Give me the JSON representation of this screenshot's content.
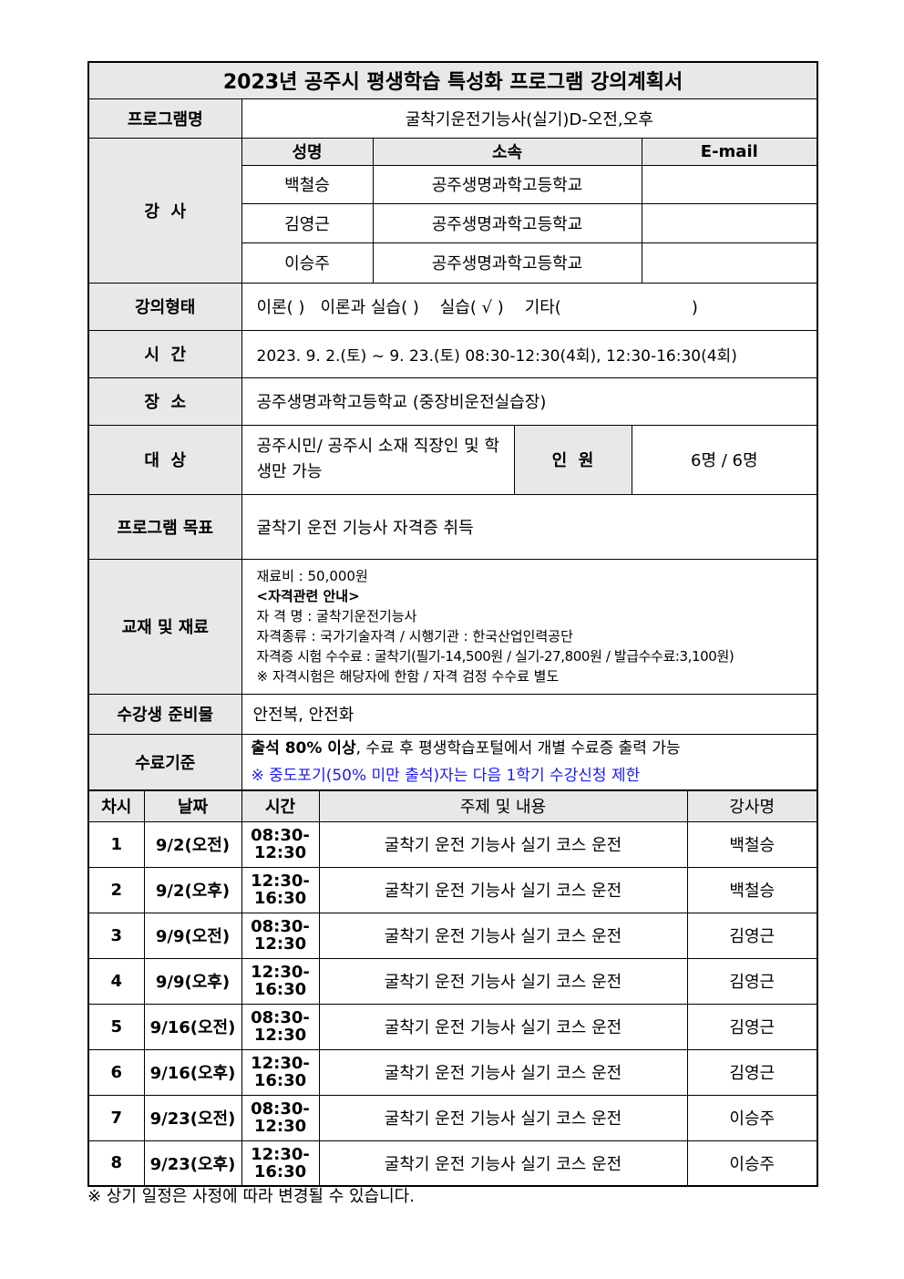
{
  "title": "2023년 공주시 평생학습 특성화 프로그램 강의계획서",
  "program": {
    "label": "프로그램명",
    "value": "굴착기운전기능사(실기)D-오전,오후"
  },
  "instructors": {
    "label": "강  사",
    "headers": [
      "성명",
      "소속",
      "E-mail"
    ],
    "rows": [
      {
        "name": "백철승",
        "org": "공주생명과학고등학교",
        "email": ""
      },
      {
        "name": "김영근",
        "org": "공주생명과학고등학교",
        "email": ""
      },
      {
        "name": "이승주",
        "org": "공주생명과학고등학교",
        "email": ""
      }
    ]
  },
  "lecture_type": {
    "label": "강의형태",
    "value": "이론( )   이론과 실습( )    실습( √ )    기타(                         )"
  },
  "time": {
    "label": "시  간",
    "value": "2023. 9. 2.(토) ~ 9. 23.(토) 08:30-12:30(4회), 12:30-16:30(4회)"
  },
  "place": {
    "label": "장  소",
    "value": "공주생명과학고등학교 (중장비운전실습장)"
  },
  "target": {
    "label": "대  상",
    "value": "공주시민/ 공주시 소재 직장인 및 학생만 가능",
    "count_label": "인  원",
    "count": "6명 / 6명"
  },
  "goal": {
    "label": "프로그램 목표",
    "value": "굴착기 운전 기능사 자격증 취득"
  },
  "materials": {
    "label": "교재 및 재료",
    "lines": [
      "재료비 : 50,000원",
      "<자격관련 안내>",
      "자 격 명 : 굴착기운전기능사",
      "자격종류 : 국가기술자격 / 시행기관 : 한국산업인력공단",
      "자격증 시험 수수료 : 굴착기(필기-14,500원 / 실기-27,800원 / 발급수수료:3,100원)",
      "※ 자격시험은 해당자에 한함 / 자격 검정 수수료 별도"
    ]
  },
  "prep": {
    "label": "수강생 준비물",
    "value": "안전복, 안전화"
  },
  "criteria": {
    "label": "수료기준",
    "bold": "출석 80% 이상",
    "rest": ", 수료 후 평생학습포털에서 개별 수료증 출력 가능",
    "notice": "※ 중도포기(50% 미만 출석)자는 다음 1학기 수강신청 제한",
    "notice_color": "#1a1aff"
  },
  "schedule": {
    "headers": [
      "차시",
      "날짜",
      "시간",
      "주제 및 내용",
      "강사명"
    ],
    "rows": [
      {
        "n": "1",
        "date": "9/2(오전)",
        "t1": "08:30-",
        "t2": "12:30",
        "topic": "굴착기 운전 기능사 실기 코스 운전",
        "teacher": "백철승"
      },
      {
        "n": "2",
        "date": "9/2(오후)",
        "t1": "12:30-",
        "t2": "16:30",
        "topic": "굴착기 운전 기능사 실기 코스 운전",
        "teacher": "백철승"
      },
      {
        "n": "3",
        "date": "9/9(오전)",
        "t1": "08:30-",
        "t2": "12:30",
        "topic": "굴착기 운전 기능사 실기 코스 운전",
        "teacher": "김영근"
      },
      {
        "n": "4",
        "date": "9/9(오후)",
        "t1": "12:30-",
        "t2": "16:30",
        "topic": "굴착기 운전 기능사 실기 코스 운전",
        "teacher": "김영근"
      },
      {
        "n": "5",
        "date": "9/16(오전)",
        "t1": "08:30-",
        "t2": "12:30",
        "topic": "굴착기 운전 기능사 실기 코스 운전",
        "teacher": "김영근"
      },
      {
        "n": "6",
        "date": "9/16(오후)",
        "t1": "12:30-",
        "t2": "16:30",
        "topic": "굴착기 운전 기능사 실기 코스 운전",
        "teacher": "김영근"
      },
      {
        "n": "7",
        "date": "9/23(오전)",
        "t1": "08:30-",
        "t2": "12:30",
        "topic": "굴착기 운전 기능사 실기 코스 운전",
        "teacher": "이승주"
      },
      {
        "n": "8",
        "date": "9/23(오후)",
        "t1": "12:30-",
        "t2": "16:30",
        "topic": "굴착기 운전 기능사 실기 코스 운전",
        "teacher": "이승주"
      }
    ]
  },
  "footnote": "※ 상기 일정은 사정에 따라 변경될 수 있습니다."
}
